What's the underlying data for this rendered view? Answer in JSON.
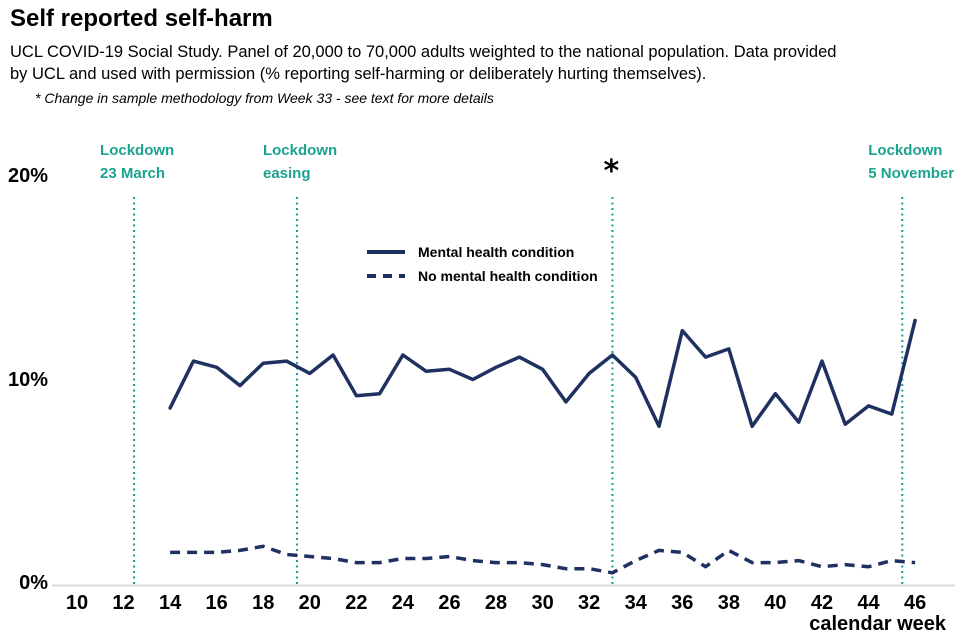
{
  "header": {
    "title": "Self reported self-harm",
    "subtitle_lines": [
      "UCL COVID-19 Social Study. Panel of 20,000 to 70,000 adults weighted to the national population. Data provided",
      "by UCL and used with permission (% reporting self-harming or deliberately hurting themselves)."
    ],
    "footnote": "* Change in sample methodology from Week 33 - see text for more details"
  },
  "chart_data": {
    "type": "line",
    "title": "Self reported self-harm",
    "xlabel": "calendar week",
    "ylabel": "% reporting self-harming or deliberately hurting themselves",
    "grid": false,
    "legend_position": "upper-center-inside",
    "xlim": [
      9,
      47.5
    ],
    "ylim": [
      0,
      22
    ],
    "x_ticks": [
      10,
      12,
      14,
      16,
      18,
      20,
      22,
      24,
      26,
      28,
      30,
      32,
      34,
      36,
      38,
      40,
      42,
      44,
      46
    ],
    "y_ticks": [
      {
        "value": 0,
        "label": "0%"
      },
      {
        "value": 10,
        "label": "10%"
      },
      {
        "value": 20,
        "label": "20%"
      }
    ],
    "weeks": [
      14,
      15,
      16,
      17,
      18,
      19,
      20,
      21,
      22,
      23,
      24,
      25,
      26,
      27,
      28,
      29,
      30,
      31,
      32,
      33,
      34,
      35,
      36,
      37,
      38,
      39,
      40,
      41,
      42,
      43,
      44,
      45,
      46
    ],
    "series": [
      {
        "name": "Mental health condition",
        "style": "solid",
        "values": [
          8.7,
          11.0,
          10.7,
          9.8,
          10.9,
          11.0,
          10.4,
          11.3,
          9.3,
          9.4,
          11.3,
          10.5,
          10.6,
          10.1,
          10.7,
          11.2,
          10.6,
          9.0,
          10.4,
          11.3,
          10.2,
          7.8,
          12.5,
          11.2,
          11.6,
          7.8,
          9.4,
          8.0,
          11.0,
          7.9,
          8.8,
          8.4,
          13.0
        ]
      },
      {
        "name": "No mental health condition",
        "style": "dashed",
        "values": [
          1.6,
          1.6,
          1.6,
          1.7,
          1.9,
          1.5,
          1.4,
          1.3,
          1.1,
          1.1,
          1.3,
          1.3,
          1.4,
          1.2,
          1.1,
          1.1,
          1.0,
          0.8,
          0.8,
          0.6,
          1.2,
          1.7,
          1.6,
          0.9,
          1.7,
          1.1,
          1.1,
          1.2,
          0.9,
          1.0,
          0.9,
          1.2,
          1.1
        ]
      }
    ],
    "markers": [
      {
        "week": 12.45,
        "label_lines": [
          "Lockdown",
          "23 March"
        ]
      },
      {
        "week": 19.45,
        "label_lines": [
          "Lockdown",
          "easing"
        ]
      },
      {
        "week": 33,
        "type": "asterisk",
        "symbol": "*"
      },
      {
        "week": 45.45,
        "label_lines": [
          "Lockdown",
          "5 November"
        ]
      }
    ],
    "colors": {
      "line": "#1e3160",
      "marker": "#1aa38e",
      "axis": "#d9d9d9",
      "text": "#000000"
    }
  }
}
